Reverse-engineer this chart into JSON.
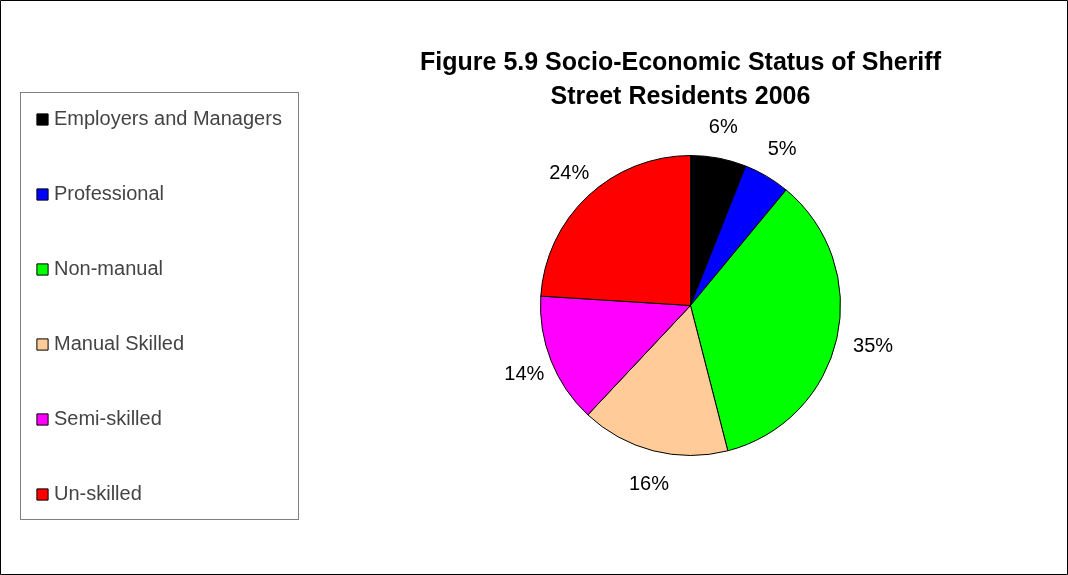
{
  "chart_data": {
    "type": "pie",
    "title": "Figure 5.9 Socio-Economic Status of Sheriff Street Residents 2006",
    "categories": [
      "Employers and Managers",
      "Professional",
      "Non-manual",
      "Manual Skilled",
      "Semi-skilled",
      "Un-skilled"
    ],
    "values": [
      6,
      5,
      35,
      16,
      14,
      24
    ],
    "colors": [
      "#000000",
      "#0000ff",
      "#00ff00",
      "#ffcc99",
      "#ff00ff",
      "#ff0000"
    ],
    "value_labels": [
      "6%",
      "5%",
      "35%",
      "16%",
      "14%",
      "24%"
    ],
    "legend": "left"
  }
}
